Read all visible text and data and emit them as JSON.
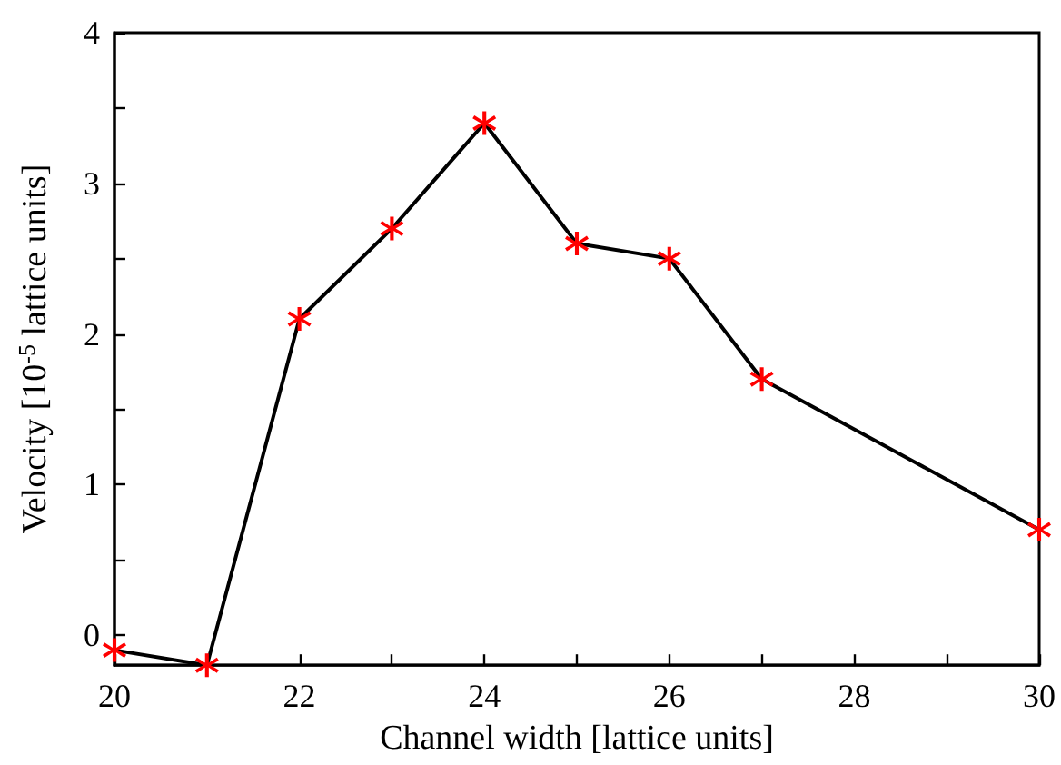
{
  "chart_data": {
    "type": "line",
    "xlabel": "Channel width [lattice units]",
    "ylabel": "Velocity [10$^{-5}$ lattice units]",
    "x": [
      20,
      21,
      22,
      23,
      24,
      25,
      26,
      27,
      30
    ],
    "series": [
      {
        "color": "#000000",
        "colors": [
          "#ff0000",
          "#ff0000",
          "#ff0000",
          "#ff0000",
          "#ff0000",
          "#ff0000",
          "#ff0000",
          "#ff0000",
          "#ff0000"
        ],
        "values": [
          -0.1,
          -0.2,
          2.1,
          2.7,
          3.4,
          2.6,
          2.5,
          1.7,
          0.7
        ]
      }
    ],
    "marker": "star",
    "line_style": "solid",
    "xlim": [
      20,
      30
    ],
    "xticks": [
      20,
      {
        "value": 21,
        "label": null
      },
      22,
      {
        "value": 23,
        "label": null
      },
      24,
      {
        "value": 25,
        "label": null
      },
      26,
      {
        "value": 27,
        "label": null
      },
      28,
      {
        "value": 29,
        "label": null
      },
      30
    ],
    "ylim": [
      -0.2,
      4
    ],
    "yticks": [
      0,
      {
        "value": 0.5,
        "label": null
      },
      1,
      {
        "value": 1.5,
        "label": null
      },
      2,
      {
        "value": 2.5,
        "label": null
      },
      3,
      {
        "value": 3.5,
        "label": null
      },
      4
    ]
  }
}
